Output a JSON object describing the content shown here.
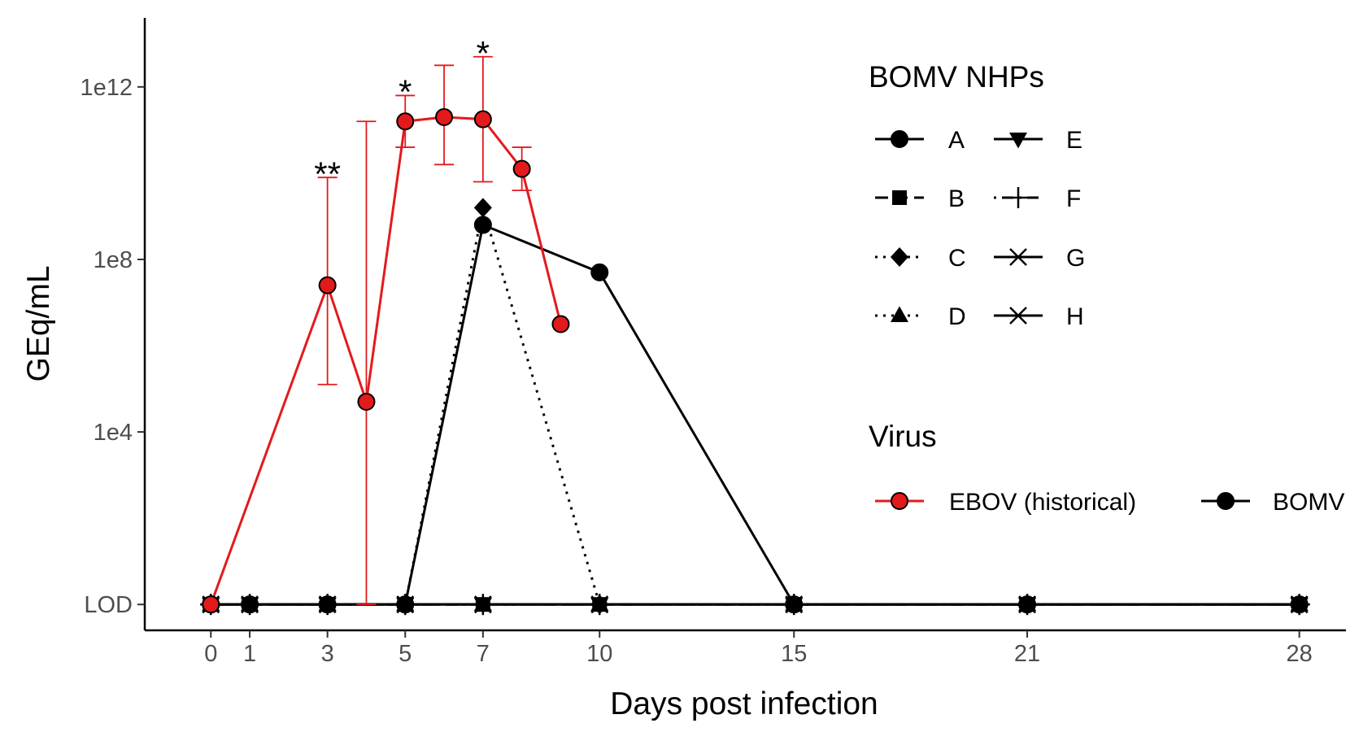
{
  "chart_data": {
    "type": "line",
    "xlabel": "Days post infection",
    "ylabel": "GEq/mL",
    "x_ticks": [
      0,
      1,
      3,
      5,
      7,
      10,
      15,
      21,
      28
    ],
    "xlim": [
      -1.7,
      29.2
    ],
    "y_scale": "log10",
    "y_ticks": [
      {
        "label": "LOD",
        "log10": 0
      },
      {
        "label": "1e4",
        "log10": 4
      },
      {
        "label": "1e8",
        "log10": 8
      },
      {
        "label": "1e12",
        "log10": 12
      }
    ],
    "ylim_log10": [
      -0.6,
      13.6
    ],
    "grid": false,
    "colors": {
      "ebov": "#E31A1C",
      "bomv": "#000000"
    },
    "ebov": {
      "name": "EBOV (historical)",
      "points": [
        {
          "x": 0,
          "log10": 0
        },
        {
          "x": 3,
          "log10": 7.4,
          "lo": 5.1,
          "hi": 9.9
        },
        {
          "x": 4,
          "log10": 4.7,
          "lo": 0,
          "hi": 11.2
        },
        {
          "x": 5,
          "log10": 11.2,
          "lo": 10.6,
          "hi": 11.8
        },
        {
          "x": 6,
          "log10": 11.3,
          "lo": 10.2,
          "hi": 12.5
        },
        {
          "x": 7,
          "log10": 11.25,
          "lo": 9.8,
          "hi": 12.7
        },
        {
          "x": 8,
          "log10": 10.1,
          "lo": 9.6,
          "hi": 10.6
        },
        {
          "x": 9,
          "log10": 6.5
        }
      ]
    },
    "bomv_nhps": [
      {
        "name": "A",
        "shape": "circle",
        "dash": "solid",
        "points": [
          [
            0,
            0
          ],
          [
            1,
            0
          ],
          [
            3,
            0
          ],
          [
            5,
            0
          ],
          [
            7,
            8.8
          ],
          [
            10,
            7.7
          ],
          [
            15,
            0
          ],
          [
            21,
            0
          ],
          [
            28,
            0
          ]
        ]
      },
      {
        "name": "B",
        "shape": "square",
        "dash": "dashed",
        "points": [
          [
            0,
            0
          ],
          [
            1,
            0
          ],
          [
            3,
            0
          ],
          [
            5,
            0
          ],
          [
            7,
            0
          ],
          [
            10,
            0
          ],
          [
            15,
            0
          ],
          [
            21,
            0
          ],
          [
            28,
            0
          ]
        ]
      },
      {
        "name": "C",
        "shape": "diamond",
        "dash": "dotted",
        "points": [
          [
            0,
            0
          ],
          [
            1,
            0
          ],
          [
            3,
            0
          ],
          [
            5,
            0
          ],
          [
            7,
            9.2
          ],
          [
            10,
            0
          ],
          [
            15,
            0
          ],
          [
            21,
            0
          ],
          [
            28,
            0
          ]
        ]
      },
      {
        "name": "D",
        "shape": "triangle-up",
        "dash": "dotted",
        "points": [
          [
            0,
            0
          ],
          [
            1,
            0
          ],
          [
            3,
            0
          ],
          [
            5,
            0
          ],
          [
            7,
            0
          ],
          [
            10,
            0
          ],
          [
            15,
            0
          ],
          [
            21,
            0
          ],
          [
            28,
            0
          ]
        ]
      },
      {
        "name": "E",
        "shape": "triangle-down",
        "dash": "longdash",
        "points": [
          [
            0,
            0
          ],
          [
            1,
            0
          ],
          [
            3,
            0
          ],
          [
            5,
            0
          ],
          [
            7,
            0
          ],
          [
            10,
            0
          ],
          [
            15,
            0
          ],
          [
            21,
            0
          ],
          [
            28,
            0
          ]
        ]
      },
      {
        "name": "F",
        "shape": "plus",
        "dash": "dotdash",
        "points": [
          [
            0,
            0
          ],
          [
            1,
            0
          ],
          [
            3,
            0
          ],
          [
            5,
            0
          ],
          [
            7,
            0
          ],
          [
            10,
            0
          ],
          [
            15,
            0
          ],
          [
            21,
            0
          ],
          [
            28,
            0
          ]
        ]
      },
      {
        "name": "G",
        "shape": "cross",
        "dash": "solid",
        "points": [
          [
            0,
            0
          ],
          [
            1,
            0
          ],
          [
            3,
            0
          ],
          [
            5,
            0
          ],
          [
            7,
            0
          ],
          [
            10,
            0
          ],
          [
            15,
            0
          ],
          [
            21,
            0
          ],
          [
            28,
            0
          ]
        ]
      },
      {
        "name": "H",
        "shape": "asterisk",
        "dash": "solid",
        "points": [
          [
            0,
            0
          ],
          [
            1,
            0
          ],
          [
            3,
            0
          ],
          [
            5,
            0
          ],
          [
            7,
            0
          ],
          [
            10,
            0
          ],
          [
            15,
            0
          ],
          [
            21,
            0
          ],
          [
            28,
            0
          ]
        ]
      }
    ],
    "annotations": [
      {
        "x": 3,
        "log10": 10.2,
        "text": "**"
      },
      {
        "x": 5,
        "log10": 12.1,
        "text": "*"
      },
      {
        "x": 7,
        "log10": 13.0,
        "text": "*"
      }
    ],
    "legend": {
      "nhp_title": "BOMV NHPs",
      "virus_title": "Virus",
      "virus_items": [
        "EBOV (historical)",
        "BOMV"
      ],
      "placement": "right"
    }
  }
}
